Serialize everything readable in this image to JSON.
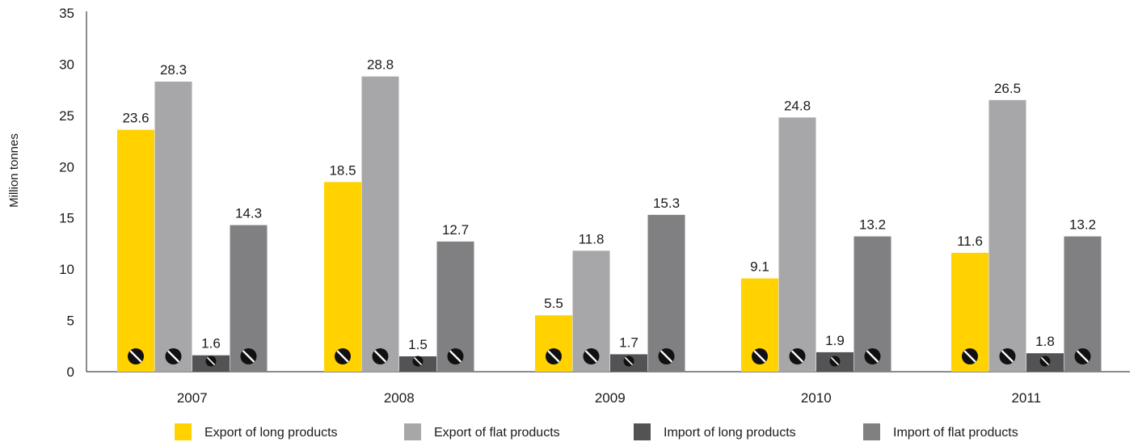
{
  "chart_data": {
    "type": "bar",
    "title": "",
    "xlabel": "",
    "ylabel": "Million tonnes",
    "ylim": [
      0,
      35
    ],
    "yticks": [
      0,
      5,
      10,
      15,
      20,
      25,
      30,
      35
    ],
    "grid": false,
    "legend_position": "bottom",
    "categories": [
      "2007",
      "2008",
      "2009",
      "2010",
      "2011"
    ],
    "series": [
      {
        "name": "Export of long products",
        "color": "#FFD200",
        "values": [
          23.6,
          18.5,
          5.5,
          9.1,
          11.6
        ],
        "marker_icon": "circle-slash-icon"
      },
      {
        "name": "Export of flat products",
        "color": "#A7A7AA",
        "values": [
          28.3,
          28.8,
          11.8,
          24.8,
          26.5
        ],
        "marker_icon": "circle-slash-icon"
      },
      {
        "name": "Import of long products",
        "color": "#535355",
        "values": [
          1.6,
          1.5,
          1.7,
          1.9,
          1.8
        ],
        "marker_icon": "circle-slash-icon"
      },
      {
        "name": "Import of flat products",
        "color": "#808083",
        "values": [
          14.3,
          12.7,
          15.3,
          13.2,
          13.2
        ],
        "marker_icon": "circle-slash-icon"
      }
    ]
  }
}
